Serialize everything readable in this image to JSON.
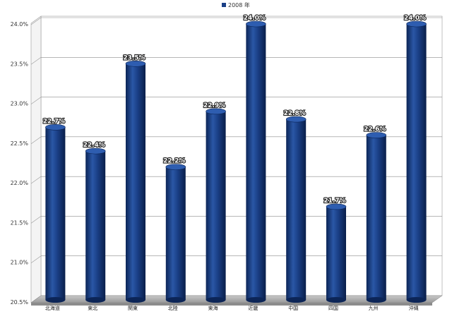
{
  "chart_data": {
    "type": "bar",
    "title": "",
    "xlabel": "",
    "ylabel": "",
    "legend": {
      "label": "2008 年",
      "placement": "top-center"
    },
    "categories": [
      "北海道",
      "東北",
      "関東",
      "北陸",
      "東海",
      "近畿",
      "中国",
      "四国",
      "九州",
      "沖縄"
    ],
    "series": [
      {
        "name": "2008 年",
        "values": [
          22.7,
          22.4,
          23.5,
          22.2,
          22.9,
          24.0,
          22.8,
          21.7,
          22.6,
          24.0
        ],
        "data_labels": [
          "22.7%",
          "22.4%",
          "23.5%",
          "22.2%",
          "22.9%",
          "24.0%",
          "22.8%",
          "21.7%",
          "22.6%",
          "24.0%"
        ]
      }
    ],
    "ylim": [
      20.5,
      24.0
    ],
    "yticks": [
      20.5,
      21.0,
      21.5,
      22.0,
      22.5,
      23.0,
      23.5,
      24.0
    ],
    "ytick_labels": [
      "20.5%",
      "21.0%",
      "21.5%",
      "22.0%",
      "22.5%",
      "23.0%",
      "23.5%",
      "24.0%"
    ],
    "grid": true,
    "colors": {
      "bar": "#1a3f86",
      "bar_dark": "#0c2557",
      "bar_light": "#3a66b5"
    }
  }
}
